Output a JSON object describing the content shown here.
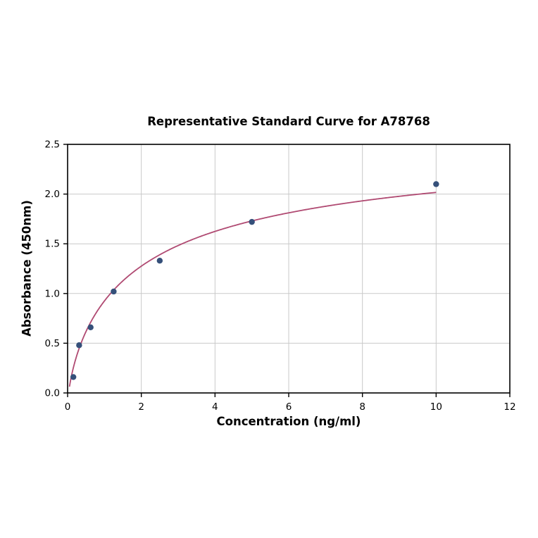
{
  "chart_data": {
    "type": "scatter",
    "title": "Representative Standard Curve for A78768",
    "xlabel": "Concentration (ng/ml)",
    "ylabel": "Absorbance (450nm)",
    "xlim": [
      0,
      12
    ],
    "ylim": [
      0,
      2.5
    ],
    "grid": true,
    "x_ticks": [
      0,
      2,
      4,
      6,
      8,
      10,
      12
    ],
    "x_tick_labels": [
      "0",
      "2",
      "4",
      "6",
      "8",
      "10",
      "12"
    ],
    "y_ticks": [
      0,
      0.5,
      1.0,
      1.5,
      2.0,
      2.5
    ],
    "y_tick_labels": [
      "0.0",
      "0.5",
      "1.0",
      "1.5",
      "2.0",
      "2.5"
    ],
    "points": [
      {
        "x": 0.156,
        "y": 0.16
      },
      {
        "x": 0.313,
        "y": 0.48
      },
      {
        "x": 0.625,
        "y": 0.66
      },
      {
        "x": 1.25,
        "y": 1.02
      },
      {
        "x": 2.5,
        "y": 1.33
      },
      {
        "x": 5,
        "y": 1.72
      },
      {
        "x": 10,
        "y": 2.1
      }
    ],
    "fit_curve": {
      "model": "4PL",
      "a": -0.1,
      "b": 0.75,
      "c": 2.0,
      "d": 2.65,
      "x_start": 0.0,
      "x_end": 10
    },
    "colors": {
      "curve": "#b04a72",
      "point": "#35507a",
      "grid": "#c9c9c9",
      "axis": "#000000",
      "background": "#ffffff"
    },
    "legend": null
  }
}
